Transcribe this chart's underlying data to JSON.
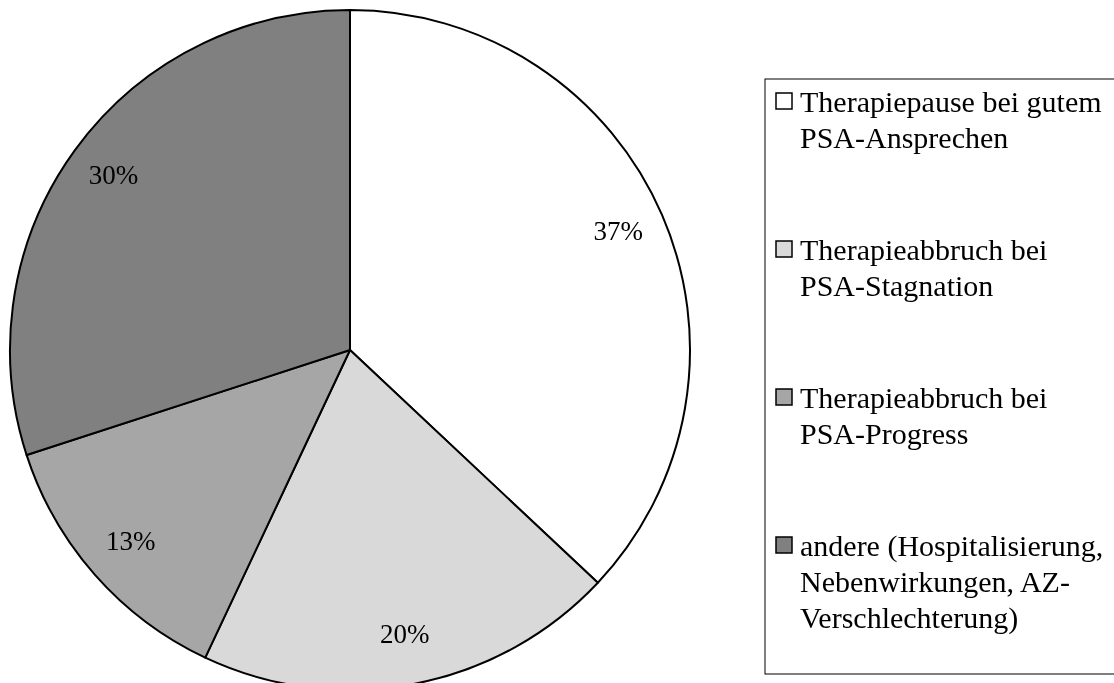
{
  "chart_data": {
    "type": "pie",
    "categories": [
      "Therapiepause bei gutem PSA-Ansprechen",
      "Therapieabbruch bei PSA-Stagnation",
      "Therapieabbruch bei PSA-Progress",
      "andere (Hospitalisierung, Nebenwirkungen, AZ-Verschlechterung)"
    ],
    "values": [
      37,
      20,
      13,
      30
    ],
    "colors": [
      "#ffffff",
      "#d9d9d9",
      "#a6a6a6",
      "#808080"
    ],
    "value_labels": [
      "37%",
      "20%",
      "13%",
      "30%"
    ],
    "legend": "right"
  }
}
